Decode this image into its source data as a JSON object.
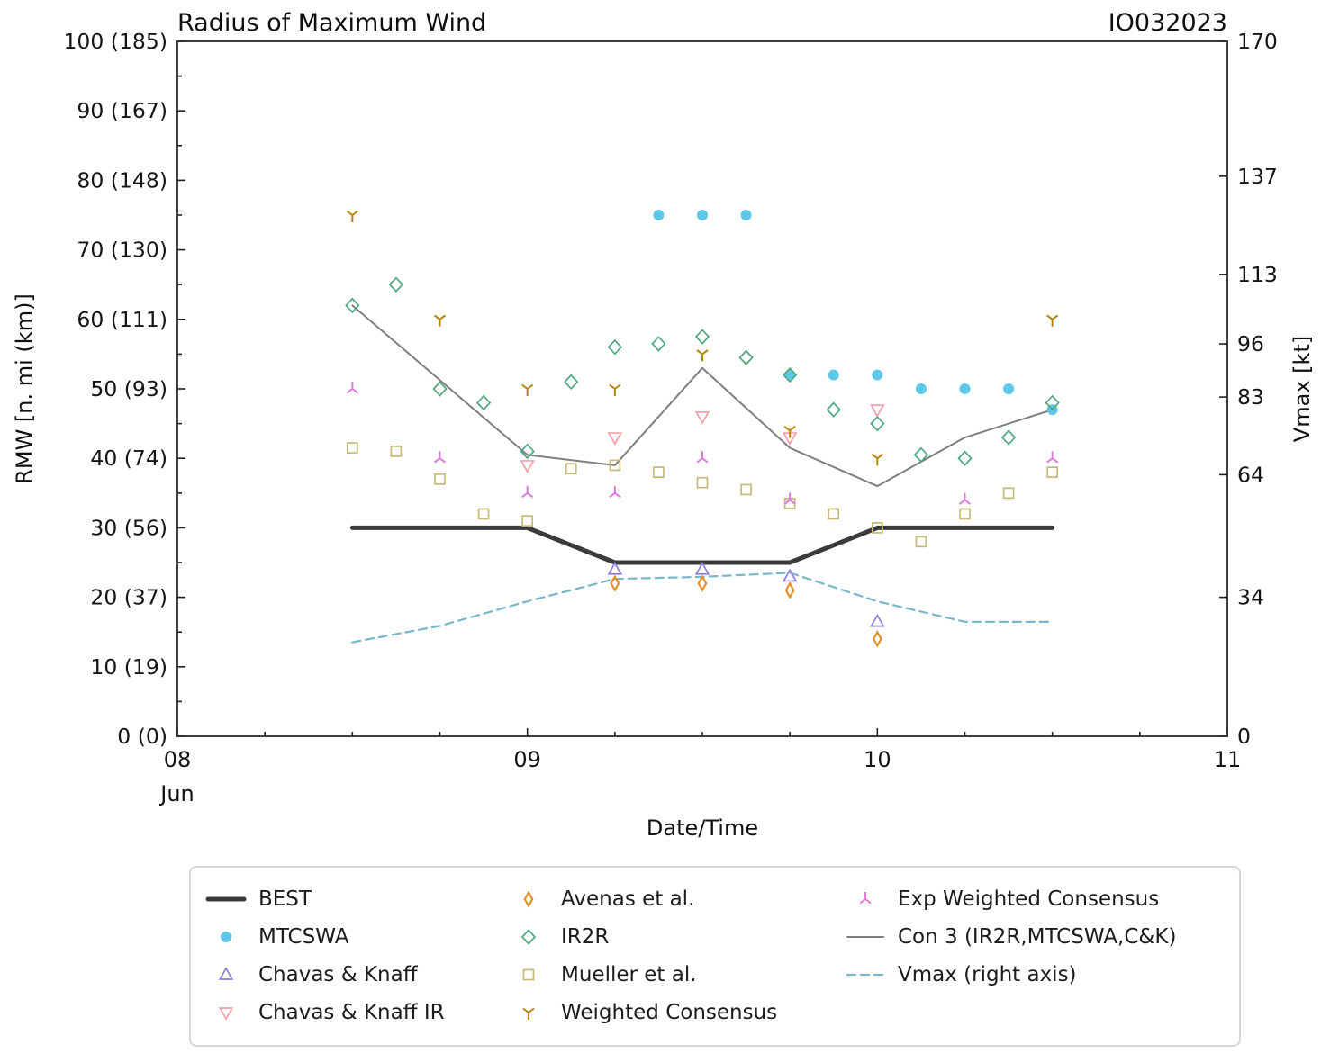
{
  "chart_data": {
    "type": "mixed-line-scatter",
    "title": "Radius of Maximum Wind",
    "annotation": "IO032023",
    "xlabel": "Date/Time",
    "x_month_label": "Jun",
    "ylabel_left": "RMW [n. mi (km)]",
    "ylabel_right": "Vmax [kt]",
    "grid": false,
    "legend_position": "bottom",
    "x_axis": {
      "range": [
        8,
        11
      ],
      "tick_values": [
        8,
        9,
        10,
        11
      ],
      "tick_labels": [
        "08",
        "09",
        "10",
        "11"
      ],
      "minor_step": 0.25
    },
    "left_axis": {
      "range": [
        0,
        100
      ],
      "tick_values": [
        0,
        10,
        20,
        30,
        40,
        50,
        60,
        70,
        80,
        90,
        100
      ],
      "tick_labels": [
        "0 (0)",
        "10 (19)",
        "20 (37)",
        "30 (56)",
        "40 (74)",
        "50 (93)",
        "60 (111)",
        "70 (130)",
        "80 (148)",
        "90 (167)",
        "100 (185)"
      ],
      "minor_step": 5
    },
    "right_axis": {
      "range": [
        0,
        170
      ],
      "tick_values": [
        0,
        34,
        64,
        83,
        96,
        113,
        137,
        170
      ],
      "tick_labels": [
        "0",
        "34",
        "64",
        "83",
        "96",
        "113",
        "137",
        "170"
      ]
    },
    "series": [
      {
        "name": "BEST",
        "style": "line",
        "color": "#3b3b3b",
        "width": 5,
        "axis": "left",
        "points": [
          [
            8.5,
            30
          ],
          [
            9.0,
            30
          ],
          [
            9.25,
            25
          ],
          [
            9.75,
            25
          ],
          [
            10.0,
            30
          ],
          [
            10.5,
            30
          ]
        ]
      },
      {
        "name": "MTCSWA",
        "style": "scatter",
        "marker": "circle",
        "color": "#5fc8e8",
        "axis": "left",
        "points": [
          [
            9.375,
            75
          ],
          [
            9.5,
            75
          ],
          [
            9.625,
            75
          ],
          [
            9.75,
            52
          ],
          [
            9.875,
            52
          ],
          [
            10.0,
            52
          ],
          [
            10.125,
            50
          ],
          [
            10.25,
            50
          ],
          [
            10.375,
            50
          ],
          [
            10.5,
            47
          ]
        ]
      },
      {
        "name": "Chavas & Knaff",
        "style": "scatter",
        "marker": "triangle-up",
        "color": "#8f7ed8",
        "axis": "left",
        "points": [
          [
            9.25,
            24
          ],
          [
            9.5,
            24
          ],
          [
            9.75,
            23
          ],
          [
            10.0,
            16.5
          ]
        ]
      },
      {
        "name": "Chavas & Knaff IR",
        "style": "scatter",
        "marker": "triangle-down",
        "color": "#f2a0a6",
        "axis": "left",
        "points": [
          [
            9.0,
            39
          ],
          [
            9.25,
            43
          ],
          [
            9.5,
            46
          ],
          [
            9.75,
            43
          ],
          [
            10.0,
            47
          ]
        ]
      },
      {
        "name": "Avenas et al.",
        "style": "scatter",
        "marker": "thin-diamond",
        "color": "#e0922f",
        "stroke_width": 2.2,
        "axis": "left",
        "points": [
          [
            9.25,
            22
          ],
          [
            9.5,
            22
          ],
          [
            9.75,
            21
          ],
          [
            10.0,
            14
          ]
        ]
      },
      {
        "name": "IR2R",
        "style": "scatter",
        "marker": "diamond",
        "color": "#4ea87d",
        "axis": "left",
        "points": [
          [
            8.5,
            62
          ],
          [
            8.625,
            65
          ],
          [
            8.75,
            50
          ],
          [
            8.875,
            48
          ],
          [
            9.0,
            41
          ],
          [
            9.125,
            51
          ],
          [
            9.25,
            56
          ],
          [
            9.375,
            56.5
          ],
          [
            9.5,
            57.5
          ],
          [
            9.625,
            54.5
          ],
          [
            9.75,
            52
          ],
          [
            9.875,
            47
          ],
          [
            10.0,
            45
          ],
          [
            10.125,
            40.5
          ],
          [
            10.25,
            40
          ],
          [
            10.375,
            43
          ],
          [
            10.5,
            48
          ]
        ]
      },
      {
        "name": "Mueller et al.",
        "style": "scatter",
        "marker": "square",
        "color": "#c6ba78",
        "axis": "left",
        "points": [
          [
            8.5,
            41.5
          ],
          [
            8.625,
            41
          ],
          [
            8.75,
            37
          ],
          [
            8.875,
            32
          ],
          [
            9.0,
            31
          ],
          [
            9.125,
            38.5
          ],
          [
            9.25,
            39
          ],
          [
            9.375,
            38
          ],
          [
            9.5,
            36.5
          ],
          [
            9.625,
            35.5
          ],
          [
            9.75,
            33.5
          ],
          [
            9.875,
            32
          ],
          [
            10.0,
            30
          ],
          [
            10.125,
            28
          ],
          [
            10.25,
            32
          ],
          [
            10.375,
            35
          ],
          [
            10.5,
            38
          ]
        ]
      },
      {
        "name": "Weighted Consensus",
        "style": "scatter",
        "marker": "tri-down",
        "color": "#b8860b",
        "stroke_width": 2,
        "axis": "left",
        "points": [
          [
            8.5,
            75
          ],
          [
            8.75,
            60
          ],
          [
            9.0,
            50
          ],
          [
            9.25,
            50
          ],
          [
            9.5,
            55
          ],
          [
            9.75,
            44
          ],
          [
            10.0,
            40
          ],
          [
            10.5,
            60
          ]
        ]
      },
      {
        "name": "Exp Weighted Consensus",
        "style": "scatter",
        "marker": "tri-up",
        "color": "#df7bdc",
        "stroke_width": 2,
        "axis": "left",
        "points": [
          [
            8.5,
            50
          ],
          [
            8.75,
            40
          ],
          [
            9.0,
            35
          ],
          [
            9.25,
            35
          ],
          [
            9.5,
            40
          ],
          [
            9.75,
            34
          ],
          [
            10.25,
            34
          ],
          [
            10.5,
            40
          ]
        ]
      },
      {
        "name": "Con 3 (IR2R,MTCSWA,C&K)",
        "style": "line",
        "color": "#7f7f7f",
        "width": 2,
        "axis": "left",
        "points": [
          [
            8.5,
            62
          ],
          [
            9.0,
            40.5
          ],
          [
            9.25,
            39
          ],
          [
            9.5,
            53
          ],
          [
            9.75,
            41.5
          ],
          [
            10.0,
            36
          ],
          [
            10.25,
            43
          ],
          [
            10.5,
            47
          ]
        ]
      },
      {
        "name": "Vmax (right axis)",
        "style": "line",
        "dashed": true,
        "color": "#79b6c8",
        "width": 2.2,
        "axis": "right",
        "points": [
          [
            8.5,
            23
          ],
          [
            8.75,
            27
          ],
          [
            9.0,
            33
          ],
          [
            9.25,
            38.5
          ],
          [
            9.5,
            39
          ],
          [
            9.75,
            40
          ],
          [
            10.0,
            33
          ],
          [
            10.25,
            28
          ],
          [
            10.5,
            28
          ]
        ]
      }
    ],
    "legend_columns": [
      [
        "BEST",
        "MTCSWA",
        "Chavas & Knaff",
        "Chavas & Knaff IR"
      ],
      [
        "Avenas et al.",
        "IR2R",
        "Mueller et al.",
        "Weighted Consensus"
      ],
      [
        "Exp Weighted Consensus",
        "Con 3 (IR2R,MTCSWA,C&K)",
        "Vmax (right axis)"
      ]
    ]
  }
}
